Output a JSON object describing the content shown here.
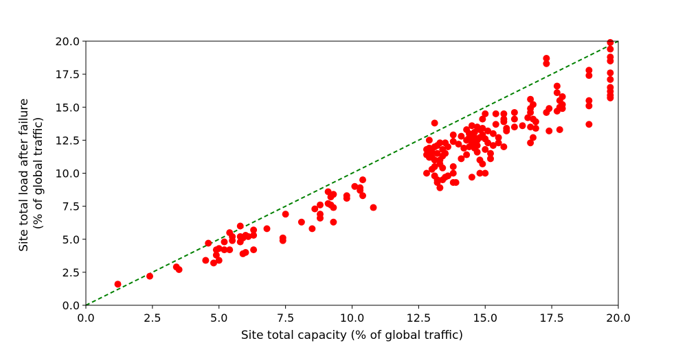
{
  "chart_data": {
    "type": "scatter",
    "title": "",
    "xlabel": "Site total capacity (% of global traffic)",
    "ylabel_line1": "Site total load after failure",
    "ylabel_line2": "(% of global traffic)",
    "xlim": [
      0,
      20
    ],
    "ylim": [
      0,
      20
    ],
    "xticks": [
      "0.0",
      "2.5",
      "5.0",
      "7.5",
      "10.0",
      "12.5",
      "15.0",
      "17.5",
      "20.0"
    ],
    "yticks": [
      "0.0",
      "2.5",
      "5.0",
      "7.5",
      "10.0",
      "12.5",
      "15.0",
      "17.5",
      "20.0"
    ],
    "grid": false,
    "marker_color": "#ff0000",
    "reference_line": {
      "from": [
        0,
        0
      ],
      "to": [
        20,
        20
      ],
      "color": "#008000",
      "style": "dashed"
    },
    "points": [
      [
        1.2,
        1.6
      ],
      [
        2.4,
        2.2
      ],
      [
        3.4,
        2.9
      ],
      [
        3.5,
        2.7
      ],
      [
        4.5,
        3.4
      ],
      [
        4.6,
        4.7
      ],
      [
        4.8,
        3.2
      ],
      [
        4.9,
        4.2
      ],
      [
        4.9,
        3.8
      ],
      [
        5.0,
        4.3
      ],
      [
        5.0,
        3.4
      ],
      [
        5.2,
        4.2
      ],
      [
        5.2,
        4.8
      ],
      [
        5.4,
        4.2
      ],
      [
        5.4,
        5.5
      ],
      [
        5.5,
        5.2
      ],
      [
        5.5,
        4.9
      ],
      [
        5.8,
        6.0
      ],
      [
        5.8,
        5.2
      ],
      [
        5.8,
        4.8
      ],
      [
        5.9,
        5.1
      ],
      [
        5.9,
        3.9
      ],
      [
        6.0,
        4.0
      ],
      [
        6.0,
        5.3
      ],
      [
        6.1,
        5.2
      ],
      [
        6.3,
        5.7
      ],
      [
        6.3,
        5.3
      ],
      [
        6.3,
        4.2
      ],
      [
        6.8,
        5.8
      ],
      [
        7.4,
        4.9
      ],
      [
        7.4,
        5.1
      ],
      [
        7.5,
        6.9
      ],
      [
        8.1,
        6.3
      ],
      [
        8.5,
        5.8
      ],
      [
        8.6,
        7.3
      ],
      [
        8.8,
        7.6
      ],
      [
        8.8,
        6.9
      ],
      [
        8.8,
        6.6
      ],
      [
        9.1,
        8.6
      ],
      [
        9.1,
        7.7
      ],
      [
        9.2,
        7.6
      ],
      [
        9.2,
        8.2
      ],
      [
        9.3,
        7.4
      ],
      [
        9.3,
        8.4
      ],
      [
        9.3,
        6.3
      ],
      [
        9.8,
        8.3
      ],
      [
        9.8,
        8.1
      ],
      [
        10.1,
        9.0
      ],
      [
        10.3,
        8.9
      ],
      [
        10.3,
        8.7
      ],
      [
        10.4,
        9.5
      ],
      [
        10.4,
        8.3
      ],
      [
        10.8,
        7.4
      ],
      [
        12.8,
        11.4
      ],
      [
        12.8,
        11.8
      ],
      [
        12.8,
        10.0
      ],
      [
        12.9,
        11.9
      ],
      [
        12.9,
        12.5
      ],
      [
        12.9,
        11.2
      ],
      [
        13.0,
        10.3
      ],
      [
        13.0,
        11.6
      ],
      [
        13.0,
        11.2
      ],
      [
        13.1,
        13.8
      ],
      [
        13.1,
        10.5
      ],
      [
        13.1,
        12.0
      ],
      [
        13.1,
        9.8
      ],
      [
        13.1,
        11.0
      ],
      [
        13.2,
        11.5
      ],
      [
        13.2,
        9.5
      ],
      [
        13.2,
        12.1
      ],
      [
        13.2,
        9.3
      ],
      [
        13.3,
        11.0
      ],
      [
        13.3,
        12.3
      ],
      [
        13.3,
        8.9
      ],
      [
        13.3,
        10.7
      ],
      [
        13.4,
        11.3
      ],
      [
        13.4,
        11.8
      ],
      [
        13.4,
        10.4
      ],
      [
        13.4,
        9.5
      ],
      [
        13.5,
        12.3
      ],
      [
        13.5,
        11.5
      ],
      [
        13.5,
        9.7
      ],
      [
        13.6,
        12.0
      ],
      [
        13.6,
        9.8
      ],
      [
        13.8,
        12.9
      ],
      [
        13.8,
        12.4
      ],
      [
        13.8,
        10.5
      ],
      [
        13.8,
        9.3
      ],
      [
        13.8,
        10.0
      ],
      [
        13.9,
        9.3
      ],
      [
        14.0,
        12.2
      ],
      [
        14.1,
        12.8
      ],
      [
        14.1,
        11.1
      ],
      [
        14.2,
        11.9
      ],
      [
        14.3,
        13.3
      ],
      [
        14.3,
        12.5
      ],
      [
        14.3,
        11.4
      ],
      [
        14.4,
        13.0
      ],
      [
        14.4,
        12.0
      ],
      [
        14.4,
        12.7
      ],
      [
        14.5,
        13.6
      ],
      [
        14.5,
        12.3
      ],
      [
        14.5,
        12.9
      ],
      [
        14.5,
        9.7
      ],
      [
        14.6,
        13.1
      ],
      [
        14.6,
        12.7
      ],
      [
        14.6,
        11.9
      ],
      [
        14.7,
        13.5
      ],
      [
        14.7,
        12.5
      ],
      [
        14.7,
        12.1
      ],
      [
        14.7,
        11.6
      ],
      [
        14.8,
        13.3
      ],
      [
        14.8,
        12.7
      ],
      [
        14.8,
        11.0
      ],
      [
        14.8,
        10.0
      ],
      [
        14.9,
        12.9
      ],
      [
        14.9,
        14.1
      ],
      [
        14.9,
        10.7
      ],
      [
        14.9,
        13.4
      ],
      [
        15.0,
        14.5
      ],
      [
        15.0,
        12.6
      ],
      [
        15.0,
        11.8
      ],
      [
        15.0,
        10.0
      ],
      [
        15.1,
        13.2
      ],
      [
        15.1,
        12.3
      ],
      [
        15.2,
        11.5
      ],
      [
        15.2,
        11.1
      ],
      [
        15.3,
        12.1
      ],
      [
        15.3,
        13.0
      ],
      [
        15.4,
        14.5
      ],
      [
        15.4,
        13.7
      ],
      [
        15.5,
        12.3
      ],
      [
        15.5,
        12.7
      ],
      [
        15.7,
        14.5
      ],
      [
        15.7,
        13.9
      ],
      [
        15.7,
        12.0
      ],
      [
        15.7,
        14.1
      ],
      [
        15.8,
        13.4
      ],
      [
        15.8,
        13.2
      ],
      [
        16.1,
        14.6
      ],
      [
        16.1,
        13.5
      ],
      [
        16.1,
        14.1
      ],
      [
        16.4,
        13.6
      ],
      [
        16.6,
        14.2
      ],
      [
        16.7,
        15.6
      ],
      [
        16.7,
        14.9
      ],
      [
        16.7,
        14.6
      ],
      [
        16.7,
        13.5
      ],
      [
        16.7,
        12.3
      ],
      [
        16.8,
        14.1
      ],
      [
        16.8,
        12.7
      ],
      [
        16.8,
        15.2
      ],
      [
        16.9,
        13.9
      ],
      [
        16.9,
        13.4
      ],
      [
        17.3,
        18.7
      ],
      [
        17.3,
        18.3
      ],
      [
        17.3,
        14.6
      ],
      [
        17.4,
        14.9
      ],
      [
        17.4,
        13.2
      ],
      [
        17.7,
        16.6
      ],
      [
        17.7,
        16.1
      ],
      [
        17.7,
        14.7
      ],
      [
        17.8,
        15.0
      ],
      [
        17.8,
        15.5
      ],
      [
        17.8,
        13.3
      ],
      [
        17.9,
        15.8
      ],
      [
        17.9,
        15.2
      ],
      [
        17.9,
        14.9
      ],
      [
        18.9,
        17.8
      ],
      [
        18.9,
        17.4
      ],
      [
        18.9,
        15.5
      ],
      [
        18.9,
        15.1
      ],
      [
        18.9,
        13.7
      ],
      [
        19.7,
        19.9
      ],
      [
        19.7,
        19.4
      ],
      [
        19.7,
        18.8
      ],
      [
        19.7,
        18.5
      ],
      [
        19.7,
        17.6
      ],
      [
        19.7,
        17.1
      ],
      [
        19.7,
        16.5
      ],
      [
        19.7,
        16.2
      ],
      [
        19.7,
        15.9
      ],
      [
        19.7,
        15.7
      ]
    ]
  }
}
